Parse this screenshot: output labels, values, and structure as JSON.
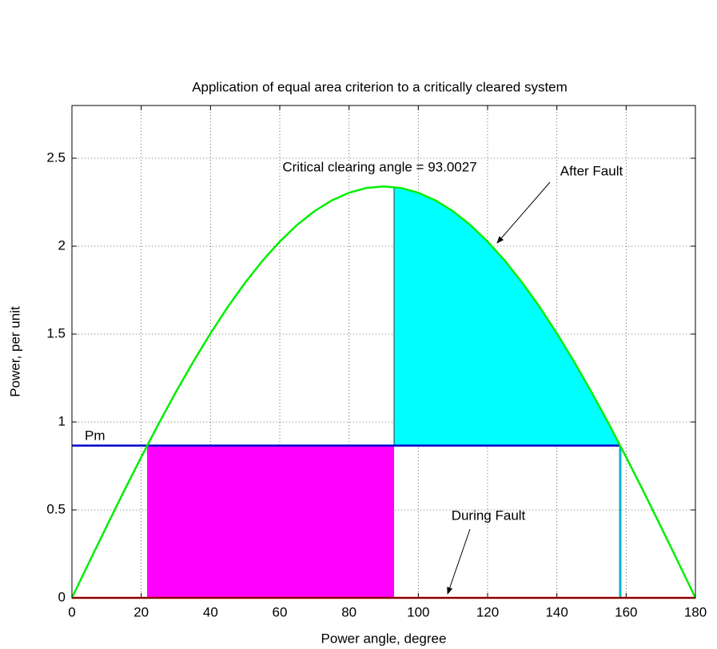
{
  "chart_data": {
    "type": "line",
    "title": "Application of equal area criterion to a critically cleared system",
    "xlabel": "Power angle, degree",
    "ylabel": "Power, per unit",
    "xlim": [
      0,
      180
    ],
    "ylim": [
      0,
      2.8
    ],
    "xticks": [
      0,
      20,
      40,
      60,
      80,
      100,
      120,
      140,
      160,
      180
    ],
    "yticks": [
      0,
      0.5,
      1,
      1.5,
      2,
      2.5
    ],
    "grid": true,
    "x": [
      0,
      5,
      10,
      15,
      20,
      25,
      30,
      35,
      40,
      45,
      50,
      55,
      60,
      65,
      70,
      75,
      80,
      85,
      90,
      95,
      100,
      105,
      110,
      115,
      120,
      125,
      130,
      135,
      140,
      145,
      150,
      155,
      160,
      165,
      170,
      175,
      180
    ],
    "series": [
      {
        "color": "#00ee00",
        "values": [
          0,
          0.204,
          0.406,
          0.606,
          0.8,
          0.989,
          1.17,
          1.342,
          1.504,
          1.655,
          1.792,
          1.917,
          2.026,
          2.121,
          2.199,
          2.26,
          2.304,
          2.331,
          2.34,
          2.331,
          2.304,
          2.26,
          2.199,
          2.121,
          2.026,
          1.917,
          1.792,
          1.655,
          1.504,
          1.342,
          1.17,
          0.989,
          0.8,
          0.606,
          0.406,
          0.204,
          0
        ]
      }
    ],
    "pm": 0.866,
    "pm_color": "#0000cc",
    "during_fault": 0,
    "during_fault_color": "#ff0000",
    "delta_0": 21.7,
    "delta_clear": 93.0027,
    "delta_max": 158.3,
    "accelerating_area_color": "#ff00ff",
    "decelerating_area_color": "#00ffff",
    "delta_max_line_color": "#00b8c8",
    "annotations": [
      "Pm",
      "Critical clearing angle = 93.0027",
      "After Fault",
      "During Fault"
    ]
  }
}
